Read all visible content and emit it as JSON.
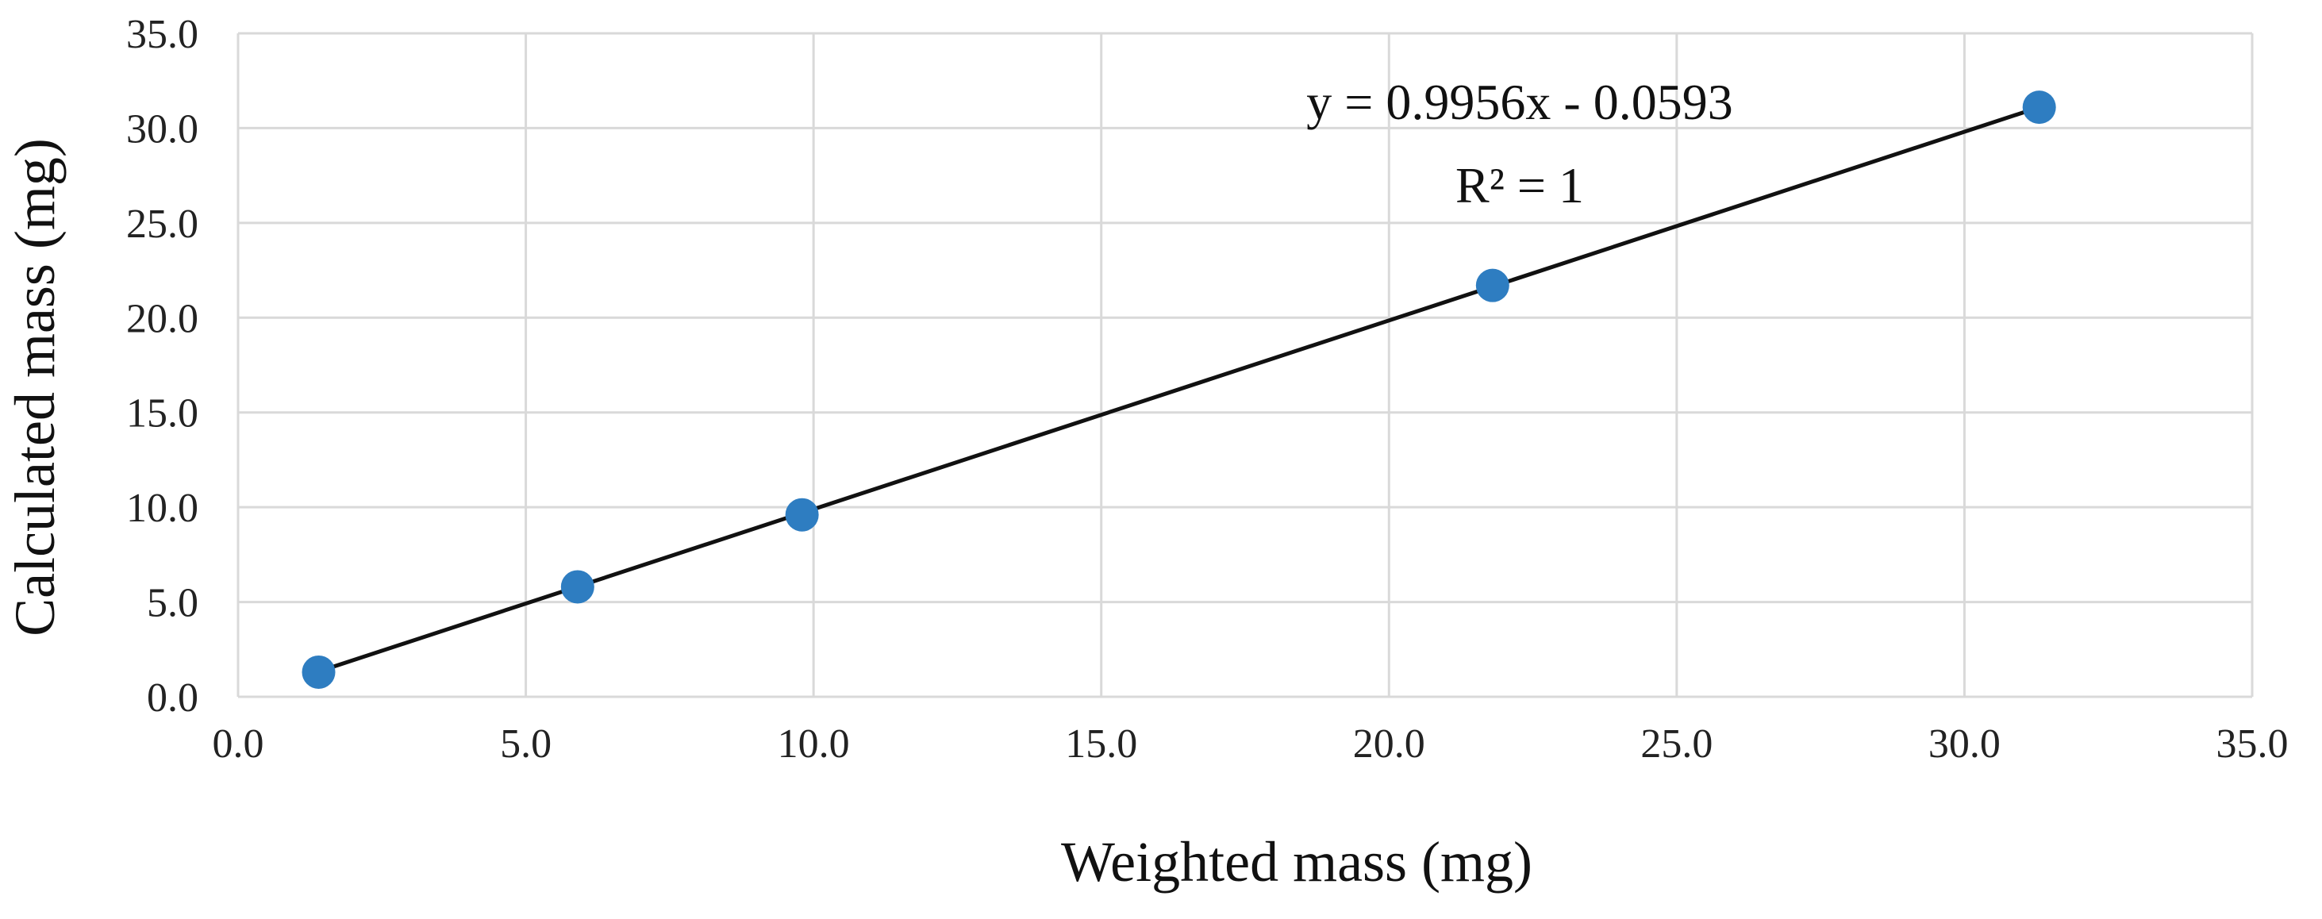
{
  "chart_data": {
    "type": "scatter",
    "title": "",
    "xlabel": "Weighted mass (mg)",
    "ylabel": "Calculated mass (mg)",
    "xlim": [
      0,
      35
    ],
    "ylim": [
      0,
      35
    ],
    "x_ticks": [
      "0.0",
      "5.0",
      "10.0",
      "15.0",
      "20.0",
      "25.0",
      "30.0",
      "35.0"
    ],
    "y_ticks": [
      "0.0",
      "5.0",
      "10.0",
      "15.0",
      "20.0",
      "25.0",
      "30.0",
      "35.0"
    ],
    "grid": true,
    "series": [
      {
        "name": "Calculated mass",
        "x": [
          1.4,
          5.9,
          9.8,
          21.8,
          31.3
        ],
        "y": [
          1.3,
          5.8,
          9.6,
          21.7,
          31.1
        ]
      }
    ],
    "trendline": {
      "slope": 0.9956,
      "intercept": -0.0593,
      "x_range": [
        1.4,
        31.3
      ],
      "equation": "y = 0.9956x - 0.0593",
      "r_squared": "R² = 1"
    }
  },
  "colors": {
    "marker": "#2E7DC1",
    "grid": "#D9D9D9",
    "line": "#111111"
  }
}
